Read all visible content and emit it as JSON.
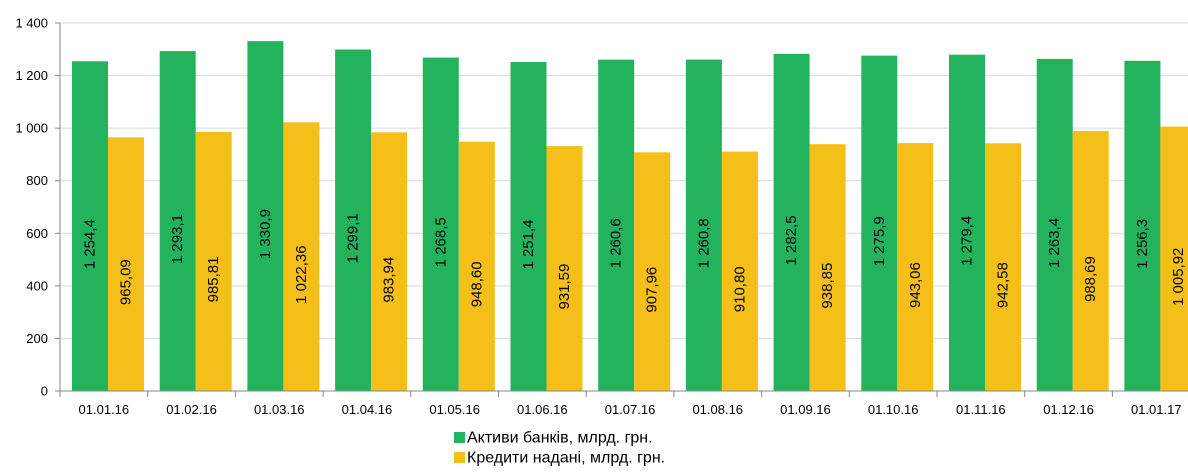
{
  "chart_data": {
    "type": "bar",
    "categories": [
      "01.01.16",
      "01.02.16",
      "01.03.16",
      "01.04.16",
      "01.05.16",
      "01.06.16",
      "01.07.16",
      "01.08.16",
      "01.09.16",
      "01.10.16",
      "01.11.16",
      "01.12.16",
      "01.01.17"
    ],
    "series": [
      {
        "name": "Активи банків, млрд. грн.",
        "color": "#23b35d",
        "values": [
          1254.4,
          1293.1,
          1330.9,
          1299.1,
          1268.5,
          1251.4,
          1260.6,
          1260.8,
          1282.5,
          1275.9,
          1279.4,
          1263.4,
          1256.3
        ],
        "labels": [
          "1 254,4",
          "1 293,1",
          "1 330,9",
          "1 299,1",
          "1 268,5",
          "1 251,4",
          "1 260,6",
          "1 260,8",
          "1 282,5",
          "1 275,9",
          "1 279,4",
          "1 263,4",
          "1 256,3"
        ]
      },
      {
        "name": "Кредити надані, млрд. грн.",
        "color": "#f5bf1a",
        "values": [
          965.09,
          985.81,
          1022.36,
          983.94,
          948.6,
          931.59,
          907.96,
          910.8,
          938.85,
          943.06,
          942.58,
          988.69,
          1005.92
        ],
        "labels": [
          "965,09",
          "985,81",
          "1 022,36",
          "983,94",
          "948,60",
          "931,59",
          "907,96",
          "910,80",
          "938,85",
          "943,06",
          "942,58",
          "988,69",
          "1 005,92"
        ]
      }
    ],
    "ylim": [
      0,
      1400
    ],
    "yticks": [
      0,
      200,
      400,
      600,
      800,
      1000,
      1200,
      1400
    ],
    "ytick_labels": [
      "0",
      "200",
      "400",
      "600",
      "800",
      "1 000",
      "1 200",
      "1 400"
    ],
    "grid": true,
    "legend_position": "bottom"
  }
}
